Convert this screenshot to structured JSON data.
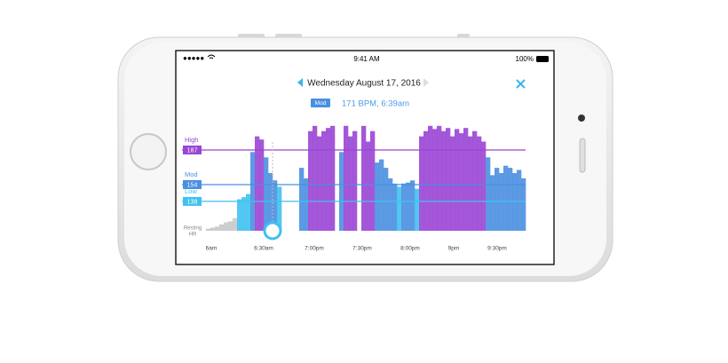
{
  "status": {
    "time": "9:41 AM",
    "battery": "100%"
  },
  "header": {
    "date": "Wednesday August 17, 2016",
    "badge": "Mod",
    "reading": "171 BPM, 6:39am"
  },
  "chart": {
    "ylim": [
      110,
      220
    ],
    "rest_color": "#c9c9cc",
    "zones": [
      {
        "name": "Low",
        "value": 138,
        "color": "#3fc1f0"
      },
      {
        "name": "Mod",
        "value": 154,
        "color": "#4a8fe0"
      },
      {
        "name": "High",
        "value": 187,
        "color": "#9a45d4"
      }
    ],
    "resting_label": [
      "Resting",
      "HR"
    ],
    "x_labels": [
      "6am",
      "6:30am",
      "7:00pm",
      "7:30pm",
      "8:00pm",
      "9pm",
      "9:30pm"
    ],
    "values": [
      112,
      113,
      114,
      116,
      118,
      119,
      122,
      140,
      142,
      145,
      185,
      200,
      197,
      180,
      165,
      158,
      152,
      null,
      null,
      null,
      null,
      170,
      160,
      205,
      210,
      200,
      205,
      208,
      210,
      null,
      185,
      210,
      200,
      205,
      null,
      210,
      195,
      205,
      175,
      178,
      170,
      160,
      155,
      152,
      155,
      156,
      158,
      150,
      200,
      205,
      210,
      207,
      210,
      205,
      208,
      200,
      207,
      203,
      208,
      200,
      205,
      200,
      195,
      180,
      163,
      170,
      165,
      172,
      170,
      165,
      168,
      160
    ]
  }
}
